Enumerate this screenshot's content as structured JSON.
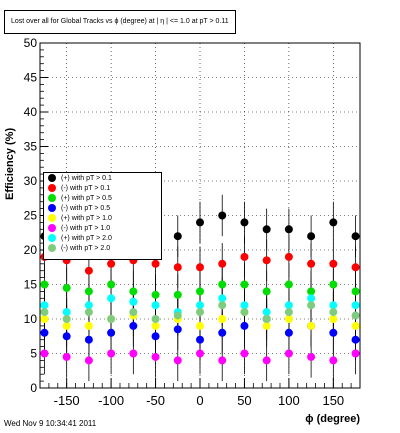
{
  "chart_data": {
    "type": "scatter",
    "title": "Lost over all for Global Tracks vs ϕ (degree) at | η | <= 1.0 at pT > 0.11",
    "xlabel": "ϕ (degree)",
    "ylabel": "Efficiency (%)",
    "xlim": [
      -180,
      180
    ],
    "ylim": [
      0,
      50
    ],
    "x_ticks": [
      "-150",
      "-100",
      "-50",
      "0",
      "50",
      "100",
      "150"
    ],
    "y_ticks": [
      "0",
      "5",
      "10",
      "15",
      "20",
      "25",
      "30",
      "35",
      "40",
      "45",
      "50"
    ],
    "grid": true,
    "legend_position": "left-middle",
    "series": [
      {
        "name": "(+) with pT > 0.1",
        "color": "#000000",
        "x": [
          -175,
          -150,
          -125,
          -100,
          -75,
          -50,
          -25,
          0,
          25,
          50,
          75,
          100,
          125,
          150,
          175
        ],
        "y": [
          22,
          21.5,
          22,
          23,
          21,
          21,
          22,
          24,
          25,
          24,
          23,
          23,
          22,
          24,
          22
        ]
      },
      {
        "name": "(-) with pT > 0.1",
        "color": "#ff0000",
        "x": [
          -175,
          -150,
          -125,
          -100,
          -75,
          -50,
          -25,
          0,
          25,
          50,
          75,
          100,
          125,
          150,
          175
        ],
        "y": [
          19,
          18.5,
          17,
          18,
          18.5,
          18,
          17.5,
          17.5,
          18,
          19,
          18.5,
          19,
          18,
          18,
          17.5
        ]
      },
      {
        "name": "(+) with pT > 0.5",
        "color": "#00dd00",
        "x": [
          -175,
          -150,
          -125,
          -100,
          -75,
          -50,
          -25,
          0,
          25,
          50,
          75,
          100,
          125,
          150,
          175
        ],
        "y": [
          15,
          14.5,
          14,
          15,
          14,
          13.5,
          13.5,
          14,
          15,
          15,
          14,
          15,
          14,
          15,
          14
        ]
      },
      {
        "name": "(-) with pT > 0.5",
        "color": "#0000ff",
        "x": [
          -175,
          -150,
          -125,
          -100,
          -75,
          -50,
          -25,
          0,
          25,
          50,
          75,
          100,
          125,
          150,
          175
        ],
        "y": [
          8,
          7.5,
          7,
          8,
          9,
          7.5,
          8.5,
          7,
          8,
          9,
          10,
          8,
          9,
          8,
          7
        ]
      },
      {
        "name": "(+) with pT > 1.0",
        "color": "#ffff00",
        "x": [
          -175,
          -150,
          -125,
          -100,
          -75,
          -50,
          -25,
          0,
          25,
          50,
          75,
          100,
          125,
          150,
          175
        ],
        "y": [
          10,
          9,
          9,
          10,
          10.5,
          9,
          10,
          9,
          10,
          11,
          9,
          10,
          9,
          10,
          9
        ]
      },
      {
        "name": "(-) with pT > 1.0",
        "color": "#ff00ff",
        "x": [
          -175,
          -150,
          -125,
          -100,
          -75,
          -50,
          -25,
          0,
          25,
          50,
          75,
          100,
          125,
          150,
          175
        ],
        "y": [
          5,
          4.5,
          4,
          5,
          5,
          4.5,
          4,
          5,
          4,
          5,
          4,
          5,
          4.5,
          4,
          5
        ]
      },
      {
        "name": "(+) with pT > 2.0",
        "color": "#00ffff",
        "x": [
          -175,
          -150,
          -125,
          -100,
          -75,
          -50,
          -25,
          0,
          25,
          50,
          75,
          100,
          125,
          150,
          175
        ],
        "y": [
          12,
          11,
          12,
          13,
          12.5,
          12,
          11,
          12,
          13,
          12,
          11,
          12,
          13,
          12,
          12
        ]
      },
      {
        "name": "(-) with pT > 2.0",
        "color": "#7fcc7f",
        "x": [
          -175,
          -150,
          -125,
          -100,
          -75,
          -50,
          -25,
          0,
          25,
          50,
          75,
          100,
          125,
          150,
          175
        ],
        "y": [
          11,
          10,
          11,
          10,
          11,
          10,
          10.5,
          11,
          12,
          11,
          10,
          11,
          12,
          11,
          10.5
        ]
      }
    ]
  },
  "footer": {
    "timestamp": "Wed Nov  9 10:34:41 2011"
  }
}
